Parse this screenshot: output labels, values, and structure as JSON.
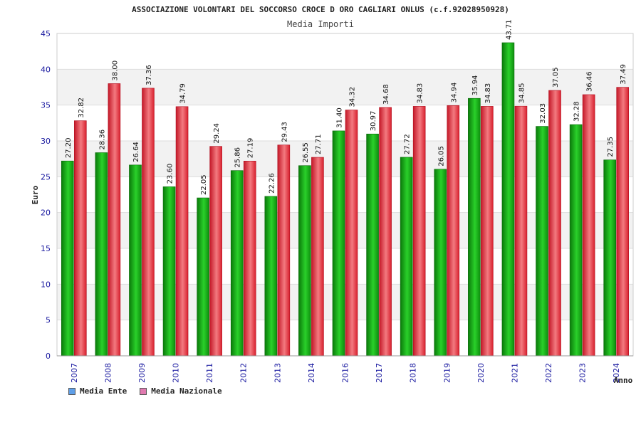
{
  "chart_data": {
    "type": "bar",
    "title": "ASSOCIAZIONE VOLONTARI DEL SOCCORSO CROCE D ORO CAGLIARI ONLUS (c.f.92028950928)",
    "subtitle": "Media Importi",
    "xlabel": "Anno",
    "ylabel": "Euro",
    "ylim": [
      0,
      45
    ],
    "yticks": [
      0,
      5,
      10,
      15,
      20,
      25,
      30,
      35,
      40,
      45
    ],
    "grid": true,
    "legend_placement": "bottom-left",
    "categories": [
      "2007",
      "2008",
      "2009",
      "2010",
      "2011",
      "2012",
      "2013",
      "2014",
      "2016",
      "2017",
      "2018",
      "2019",
      "2020",
      "2021",
      "2022",
      "2023",
      "2024"
    ],
    "series": [
      {
        "name": "Media Ente",
        "color": "#1fbe1f",
        "legend_color": "#5f9fe8",
        "values": [
          27.2,
          28.36,
          26.64,
          23.6,
          22.05,
          25.86,
          22.26,
          26.55,
          31.4,
          30.97,
          27.72,
          26.05,
          35.94,
          43.71,
          32.03,
          32.28,
          27.35
        ],
        "labels": [
          "27.20",
          "28.36",
          "26.64",
          "23.60",
          "22.05",
          "25.86",
          "22.26",
          "26.55",
          "31.40",
          "30.97",
          "27.72",
          "26.05",
          "35.94",
          "43.71",
          "32.03",
          "32.28",
          "27.35"
        ]
      },
      {
        "name": "Media Nazionale",
        "color": "#e8323c",
        "legend_color": "#e07ab0",
        "values": [
          32.82,
          38.0,
          37.36,
          34.79,
          29.24,
          27.19,
          29.43,
          27.71,
          34.32,
          34.68,
          34.83,
          34.94,
          34.83,
          34.85,
          37.05,
          36.46,
          37.49
        ],
        "labels": [
          "32.82",
          "38.00",
          "37.36",
          "34.79",
          "29.24",
          "27.19",
          "29.43",
          "27.71",
          "34.32",
          "34.68",
          "34.83",
          "34.94",
          "34.83",
          "34.85",
          "37.05",
          "36.46",
          "37.49"
        ]
      }
    ]
  }
}
